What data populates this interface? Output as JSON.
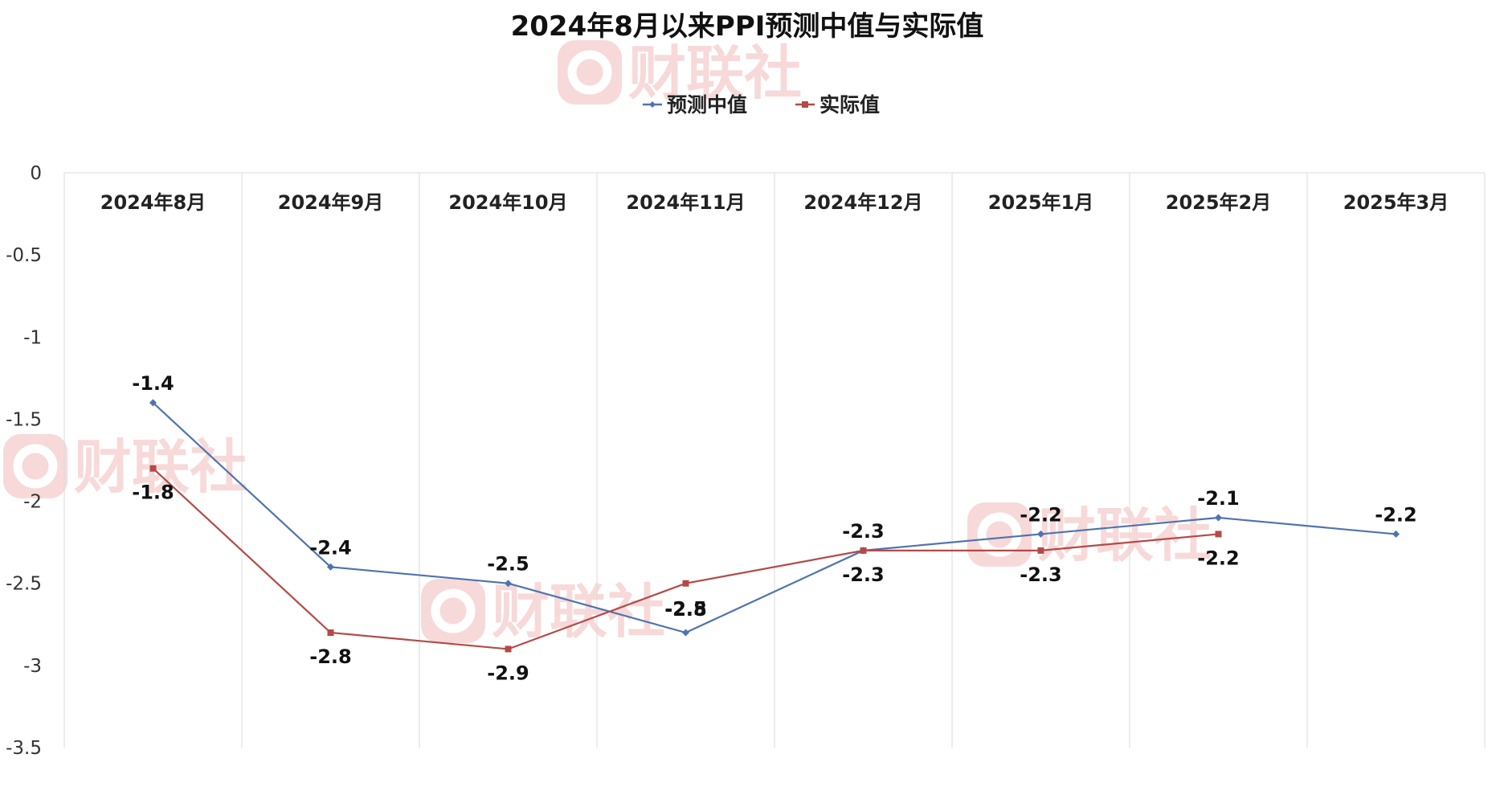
{
  "chart_data": {
    "type": "line",
    "title": "2024年8月以来PPI预测中值与实际值",
    "categories": [
      "2024年8月",
      "2024年9月",
      "2024年10月",
      "2024年11月",
      "2024年12月",
      "2025年1月",
      "2025年2月",
      "2025年3月"
    ],
    "series": [
      {
        "name": "预测中值",
        "color": "#4F73AE",
        "marker": "diamond",
        "values": [
          -1.4,
          -2.4,
          -2.5,
          -2.8,
          -2.3,
          -2.2,
          -2.1,
          -2.2
        ],
        "labels": [
          "-1.4",
          "-2.4",
          "-2.5",
          "-2.8",
          "-2.3",
          "-2.2",
          "-2.1",
          "-2.2"
        ]
      },
      {
        "name": "实际值",
        "color": "#B34A47",
        "marker": "square",
        "values": [
          -1.8,
          -2.8,
          -2.9,
          -2.5,
          -2.3,
          -2.3,
          -2.2,
          null
        ],
        "labels": [
          "-1.8",
          "-2.8",
          "-2.9",
          "-2.5",
          "-2.3",
          "-2.3",
          "-2.2",
          ""
        ]
      }
    ],
    "ylim": [
      -3.5,
      0
    ],
    "y_ticks": [
      0,
      -0.5,
      -1,
      -1.5,
      -2,
      -2.5,
      -3,
      -3.5
    ],
    "y_tick_labels": [
      "0",
      "-0.5",
      "-1",
      "-1.5",
      "-2",
      "-2.5",
      "-3",
      "-3.5"
    ],
    "x_axis_position": "top",
    "vertical_gridlines": true,
    "horizontal_gridlines": false,
    "legend": "top-center"
  },
  "watermark": {
    "text": "财联社",
    "color": "#F7D9D9"
  },
  "colors": {
    "axis_text": "#222222",
    "grid": "#DADADA"
  }
}
